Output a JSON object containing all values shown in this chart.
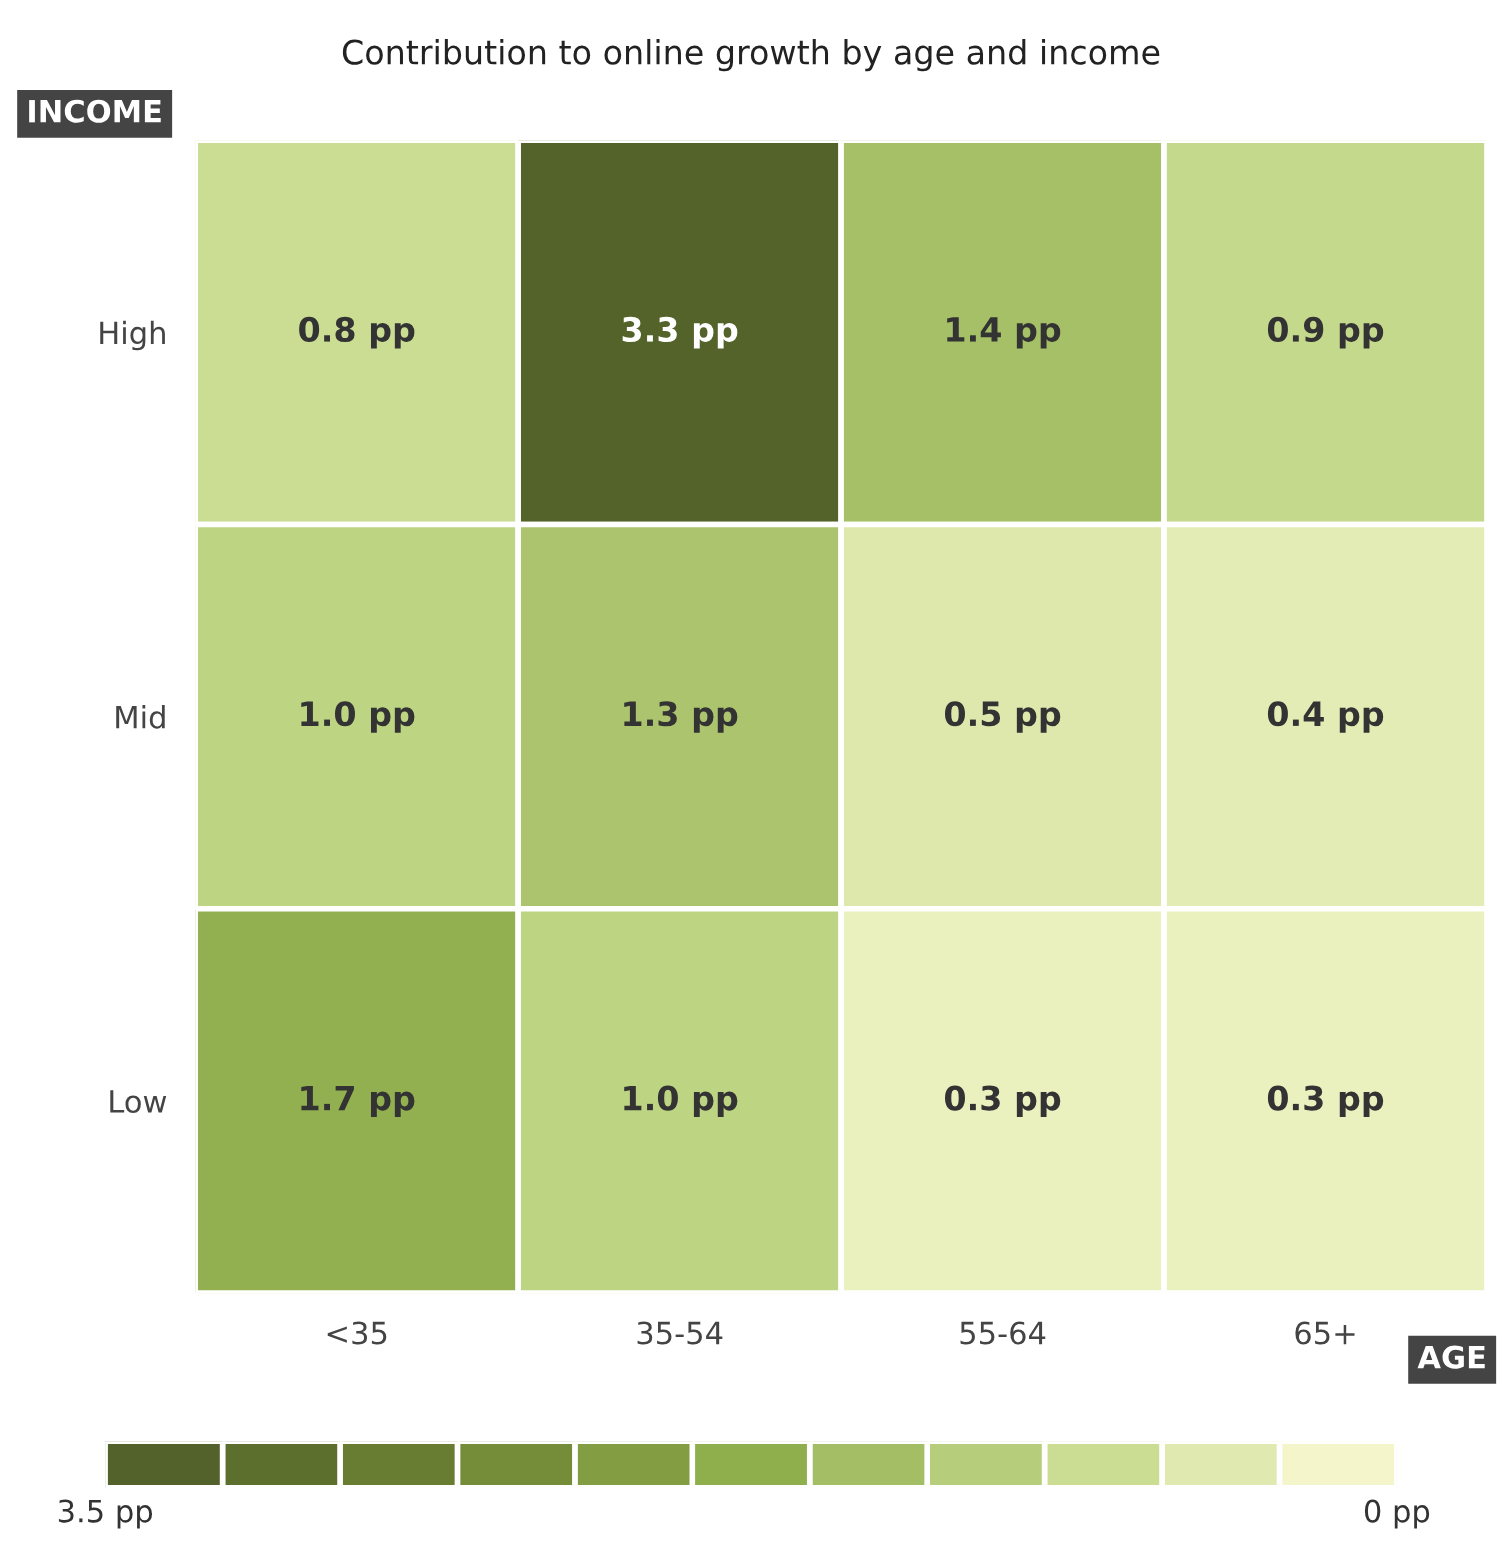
{
  "chart_data": {
    "type": "heatmap",
    "title": "Contribution to online growth by age and income",
    "xlabel": "AGE",
    "ylabel": "INCOME",
    "categories": [
      "<35",
      "35-54",
      "55-64",
      "65+"
    ],
    "y_categories": [
      "High",
      "Mid",
      "Low"
    ],
    "cells": [
      [
        0.8,
        3.3,
        1.4,
        0.9
      ],
      [
        1.0,
        1.3,
        0.5,
        0.4
      ],
      [
        1.7,
        1.0,
        0.3,
        0.3
      ]
    ],
    "cell_labels": [
      [
        "0.8 pp",
        "3.3 pp",
        "1.4 pp",
        "0.9 pp"
      ],
      [
        "1.0 pp",
        "1.3 pp",
        "0.5 pp",
        "0.4 pp"
      ],
      [
        "1.7 pp",
        "1.0 pp",
        "0.3 pp",
        "0.3 pp"
      ]
    ],
    "colors": [
      "#fefbd8",
      "#c5da8c",
      "#8fae4c",
      "#6b8132",
      "#4e5a28"
    ],
    "clim": [
      0,
      3.5
    ],
    "cticks": [
      {
        "value": 3.5,
        "label": "3.5 pp"
      },
      {
        "value": 0,
        "label": "0 pp"
      }
    ]
  }
}
